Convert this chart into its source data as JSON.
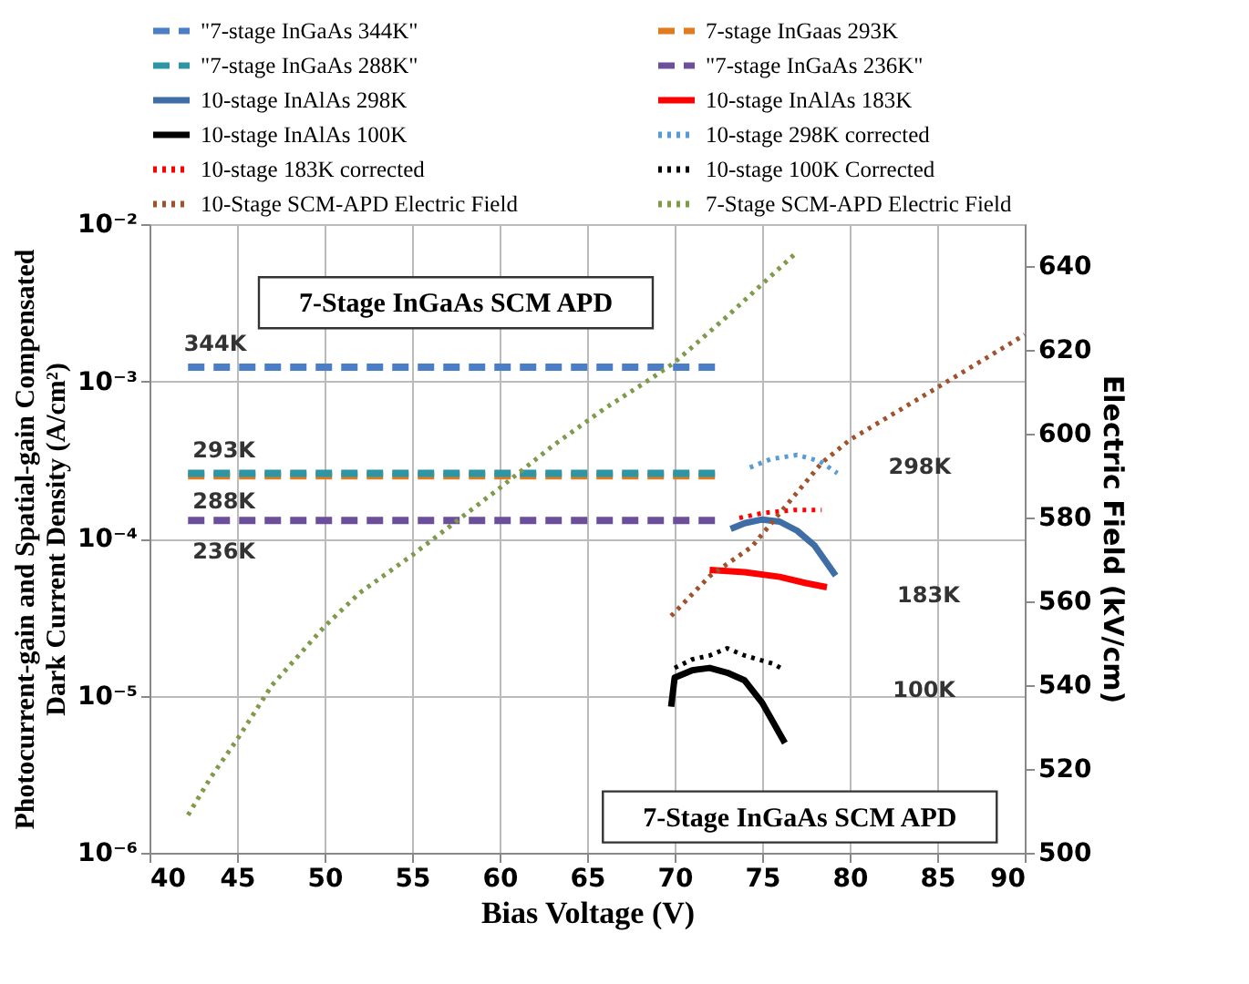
{
  "chart_data": {
    "type": "line",
    "xlabel": "Bias Voltage (V)",
    "ylabel": "Photocurrent-gain and Spatial-gain Compensated Dark Current Density (A/cm²)",
    "y2label": "Electric Field (kV/cm)",
    "xlim": [
      40,
      90
    ],
    "xticks": [
      40,
      45,
      50,
      55,
      60,
      65,
      70,
      75,
      80,
      85,
      90
    ],
    "ylim": [
      1e-06,
      0.01
    ],
    "yticks": [
      {
        "value": 1e-06,
        "label": "10⁻⁶"
      },
      {
        "value": 1e-05,
        "label": "10⁻⁵"
      },
      {
        "value": 0.0001,
        "label": "10⁻⁴"
      },
      {
        "value": 0.001,
        "label": "10⁻³"
      },
      {
        "value": 0.01,
        "label": "10⁻²"
      }
    ],
    "y2lim": [
      500,
      650
    ],
    "y2ticks": [
      500,
      520,
      540,
      560,
      580,
      600,
      620,
      640
    ],
    "log": "y",
    "grid": true,
    "legend": "top",
    "marker": "none",
    "series": [
      {
        "name": "\"7-stage InGaAs 344K\"",
        "color": "#4a7ec6",
        "line_style": "dashed",
        "x": [
          42.2,
          72.5
        ],
        "values": [
          0.00123,
          0.00123
        ]
      },
      {
        "name": "7-stage InGaas 293K",
        "color": "#e07b20",
        "line_style": "dashed",
        "x": [
          42.2,
          72.5
        ],
        "values": [
          0.00025,
          0.00025
        ]
      },
      {
        "name": "\"7-stage InGaAs 288K\"",
        "color": "#2e95a5",
        "line_style": "dashed",
        "x": [
          42.2,
          72.5
        ],
        "values": [
          0.00026,
          0.00026
        ]
      },
      {
        "name": "\"7-stage InGaAs 236K\"",
        "color": "#6b4f9a",
        "line_style": "dashed",
        "x": [
          42.2,
          72.5
        ],
        "values": [
          0.00013,
          0.00013
        ]
      },
      {
        "name": "10-stage InAlAs 298K",
        "color": "#3f6ea6",
        "line_style": "solid",
        "x": [
          73.2,
          74,
          75,
          76,
          77,
          78,
          79.2
        ],
        "values": [
          0.000115,
          0.000125,
          0.000132,
          0.000128,
          0.000112,
          9e-05,
          5.8e-05
        ]
      },
      {
        "name": "10-stage InAlAs 183K",
        "color": "#ff0000",
        "line_style": "solid",
        "x": [
          72,
          74,
          76,
          77.5,
          78.7
        ],
        "values": [
          6.3e-05,
          6.1e-05,
          5.7e-05,
          5.2e-05,
          4.9e-05
        ]
      },
      {
        "name": "10-stage InAlAs 100K",
        "color": "#000000",
        "line_style": "solid",
        "x": [
          69.8,
          70,
          71,
          72,
          73,
          74,
          75,
          76.3
        ],
        "values": [
          8.5e-06,
          1.3e-05,
          1.45e-05,
          1.5e-05,
          1.4e-05,
          1.25e-05,
          9e-06,
          5e-06
        ]
      },
      {
        "name": "10-stage 298K corrected",
        "color": "#5b9bd5",
        "line_style": "dotted",
        "x": [
          74.3,
          75.5,
          77,
          78.3,
          79.3
        ],
        "values": [
          0.000283,
          0.00032,
          0.00034,
          0.00031,
          0.00026
        ]
      },
      {
        "name": "10-stage 183K corrected",
        "color": "#ff0000",
        "line_style": "dotted",
        "x": [
          73.7,
          75,
          76.9,
          78.4
        ],
        "values": [
          0.000135,
          0.000145,
          0.000152,
          0.000152
        ]
      },
      {
        "name": "10-stage 100K Corrected",
        "color": "#000000",
        "line_style": "dotted",
        "x": [
          70,
          71,
          72,
          73,
          74,
          75.6,
          76.3
        ],
        "values": [
          1.5e-05,
          1.7e-05,
          1.8e-05,
          2e-05,
          1.8e-05,
          1.6e-05,
          1.45e-05
        ]
      },
      {
        "name": "10-Stage SCM-APD Electric Field",
        "color": "#a0522d",
        "line_style": "dotted",
        "axis": "y2",
        "x": [
          69.8,
          72,
          74.4,
          78.4,
          80,
          85,
          90
        ],
        "values": [
          556.5,
          566,
          573,
          593,
          598.5,
          611,
          623.6
        ]
      },
      {
        "name": "7-Stage SCM-APD  Electric Field",
        "color": "#7f9a4a",
        "line_style": "dotted",
        "axis": "y2",
        "x": [
          42.2,
          43.5,
          45,
          47,
          50,
          52,
          55,
          57.5,
          60,
          63,
          66,
          68.6,
          70,
          73,
          76.9
        ],
        "values": [
          509,
          518,
          527,
          540,
          554,
          562,
          571,
          579,
          587,
          597,
          606,
          613,
          617,
          628,
          643
        ]
      }
    ],
    "annotations": [
      "7-Stage InGaAs  SCM APD",
      "7-Stage InGaAs  SCM APD",
      "344K",
      "293K",
      "288K",
      "236K",
      "298K",
      "183K",
      "100K"
    ]
  }
}
